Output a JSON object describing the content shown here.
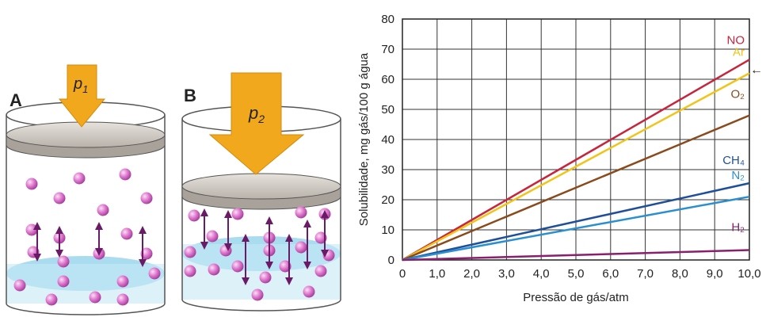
{
  "illustration": {
    "panels": [
      {
        "label": "A",
        "pressure": {
          "symbol": "p",
          "subscript": "1"
        }
      },
      {
        "label": "B",
        "pressure": {
          "symbol": "p",
          "subscript": "2"
        }
      }
    ]
  },
  "chart_data": {
    "type": "line",
    "x_label": "Pressão de gás/atm",
    "y_label": "Solubilidade, mg gás/100 g água",
    "x": [
      0,
      10
    ],
    "series": [
      {
        "name": "NO",
        "color": "#c8243c",
        "values": [
          0,
          66.5
        ]
      },
      {
        "name": "Ar",
        "color": "#f0c419",
        "values": [
          0,
          62
        ]
      },
      {
        "name": "O₂",
        "color": "#8a4a1c",
        "values": [
          0,
          48
        ]
      },
      {
        "name": "CH₄",
        "color": "#1f4f9a",
        "values": [
          0,
          25.5
        ]
      },
      {
        "name": "N₂",
        "color": "#2a8fd0",
        "values": [
          0,
          21
        ]
      },
      {
        "name": "H₂",
        "color": "#8a1f6e",
        "values": [
          0,
          3.3
        ]
      }
    ],
    "xlim": [
      0,
      10
    ],
    "ylim": [
      0,
      80
    ],
    "xticks": [
      0,
      {
        "value": 1,
        "label": "1,0"
      },
      {
        "value": 2,
        "label": "2,0"
      },
      {
        "value": 3,
        "label": "3,0"
      },
      {
        "value": 4,
        "label": "4,0"
      },
      {
        "value": 5,
        "label": "5,0"
      },
      {
        "value": 6,
        "label": "6,0"
      },
      {
        "value": 7,
        "label": "7,0"
      },
      {
        "value": 8,
        "label": "8,0"
      },
      {
        "value": 9,
        "label": "9,0"
      },
      {
        "value": 10,
        "label": "10,0"
      }
    ],
    "yticks": [
      0,
      10,
      20,
      30,
      40,
      50,
      60,
      70,
      80
    ],
    "grid": true
  }
}
